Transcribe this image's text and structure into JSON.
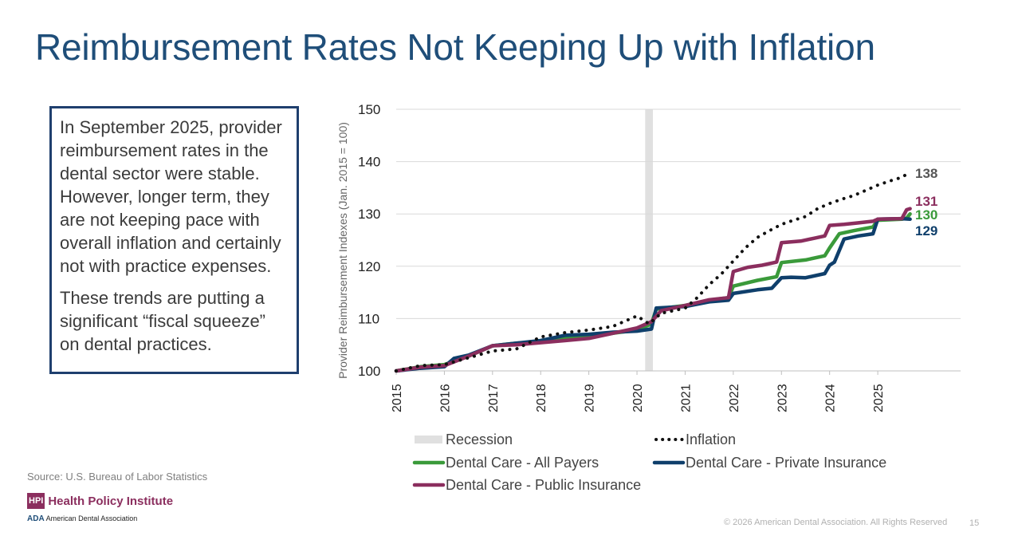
{
  "title": "Reimbursement Rates Not Keeping Up with Inflation",
  "callout": {
    "paragraph1": "In September 2025, provider reimbursement rates in the dental sector were stable. However, longer term, they are not keeping pace with overall inflation and certainly not with practice expenses.",
    "paragraph2": "These trends are putting a significant “fiscal squeeze” on dental practices."
  },
  "source": "Source: U.S. Bureau of Labor Statistics",
  "logo": {
    "hpi_mark": "HPI",
    "hpi_name": "Health Policy Institute",
    "ada_mark": "ADA",
    "ada_name": "American Dental Association"
  },
  "footer": "© 2026 American Dental Association. All Rights Reserved",
  "page_number": "15",
  "colors": {
    "title": "#1f4e79",
    "inflation": "#111111",
    "all_payers": "#3a9a3a",
    "private": "#0f3f6b",
    "public": "#8b2e5e",
    "recession": "#e0e0e0"
  },
  "chart_data": {
    "type": "line",
    "ylabel": "Provider Reimbursement Indexes (Jan. 2015 = 100)",
    "xlabel": "",
    "ylim": [
      100,
      150
    ],
    "yticks": [
      100,
      110,
      120,
      130,
      140,
      150
    ],
    "xlim": [
      2015,
      2026.7
    ],
    "xticks": [
      "2015",
      "2016",
      "2017",
      "2018",
      "2019",
      "2020",
      "2021",
      "2022",
      "2023",
      "2024",
      "2025"
    ],
    "grid": true,
    "legend_position": "bottom",
    "recession": {
      "label": "Recession",
      "start": 2020.17,
      "end": 2020.33
    },
    "end_labels": [
      {
        "series": "Inflation",
        "text": "138"
      },
      {
        "series": "Dental Care - Public Insurance",
        "text": "131"
      },
      {
        "series": "Dental Care - All Payers",
        "text": "130"
      },
      {
        "series": "Dental Care - Private Insurance",
        "text": "129"
      }
    ],
    "series": [
      {
        "name": "Inflation",
        "style": "dotted",
        "x": [
          2015,
          2015.5,
          2016,
          2016.5,
          2017,
          2017.5,
          2018,
          2018.5,
          2019,
          2019.5,
          2020,
          2020.25,
          2020.5,
          2021,
          2021.25,
          2021.5,
          2021.75,
          2022,
          2022.25,
          2022.5,
          2022.75,
          2023,
          2023.25,
          2023.5,
          2023.75,
          2024,
          2024.25,
          2024.5,
          2024.75,
          2025,
          2025.25,
          2025.5,
          2025.67
        ],
        "y": [
          100,
          101,
          101.2,
          102.5,
          103.8,
          104.2,
          106.5,
          107.3,
          107.8,
          108.5,
          110.5,
          109,
          111,
          112,
          114,
          116.5,
          118.5,
          121,
          123.5,
          125.5,
          126.8,
          128,
          128.8,
          129.5,
          131,
          132,
          132.8,
          133.5,
          134.5,
          135.5,
          136.3,
          137,
          138
        ]
      },
      {
        "name": "Dental Care - All Payers",
        "style": "solid",
        "x": [
          2015,
          2015.5,
          2016,
          2016.5,
          2017,
          2017.5,
          2018,
          2018.5,
          2019,
          2019.5,
          2020,
          2020.3,
          2020.4,
          2021,
          2021.5,
          2021.9,
          2022,
          2022.5,
          2022.9,
          2023,
          2023.5,
          2023.9,
          2024,
          2024.2,
          2024.5,
          2024.9,
          2025,
          2025.5,
          2025.6,
          2025.67
        ],
        "y": [
          100,
          100.8,
          101.2,
          102.8,
          104.8,
          105.3,
          105.6,
          106.2,
          106.4,
          107.2,
          107.8,
          109,
          111.8,
          112.5,
          113.5,
          114,
          116.2,
          117.3,
          118,
          120.7,
          121.2,
          122,
          123.5,
          126.2,
          126.8,
          127.5,
          128.8,
          129,
          129.2,
          130
        ]
      },
      {
        "name": "Dental Care - Private Insurance",
        "style": "solid",
        "x": [
          2015,
          2015.5,
          2016,
          2016.2,
          2016.5,
          2017,
          2017.5,
          2018,
          2018.5,
          2019,
          2019.5,
          2020,
          2020.3,
          2020.4,
          2021,
          2021.5,
          2021.9,
          2022,
          2022.5,
          2022.8,
          2023,
          2023.2,
          2023.5,
          2023.9,
          2024,
          2024.1,
          2024.3,
          2024.6,
          2024.9,
          2025,
          2025.5,
          2025.67
        ],
        "y": [
          100,
          100.5,
          100.8,
          102.4,
          103,
          104.8,
          105.3,
          105.8,
          106.8,
          107,
          107.4,
          107.6,
          108,
          112,
          112.3,
          113.2,
          113.5,
          114.8,
          115.5,
          115.8,
          117.8,
          117.9,
          117.8,
          118.6,
          120.2,
          120.8,
          125.2,
          125.8,
          126.2,
          129,
          129.1,
          129
        ]
      },
      {
        "name": "Dental Care - Public Insurance",
        "style": "solid",
        "x": [
          2015,
          2015.5,
          2016,
          2016.5,
          2017,
          2017.5,
          2018,
          2018.5,
          2019,
          2019.5,
          2020,
          2020.3,
          2020.5,
          2021,
          2021.5,
          2021.9,
          2022,
          2022.3,
          2022.6,
          2022.9,
          2023,
          2023.4,
          2023.7,
          2023.9,
          2024,
          2024.3,
          2024.6,
          2024.9,
          2025,
          2025.5,
          2025.6,
          2025.67
        ],
        "y": [
          100,
          100.7,
          101,
          102.8,
          104.8,
          105,
          105.4,
          105.8,
          106.2,
          107.2,
          108.2,
          109.4,
          111.5,
          112.5,
          113.6,
          114,
          119,
          119.8,
          120.2,
          120.8,
          124.5,
          124.8,
          125.4,
          125.8,
          127.8,
          128,
          128.3,
          128.6,
          129,
          129.1,
          130.8,
          131
        ]
      }
    ]
  }
}
